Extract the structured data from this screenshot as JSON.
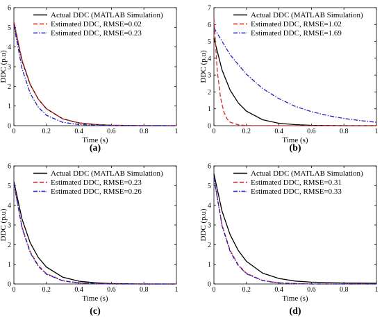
{
  "chart_data": [
    {
      "type": "line",
      "panel_label": "(a)",
      "xlabel": "Time (s)",
      "ylabel": "DDC (p.u)",
      "xlim": [
        0,
        1
      ],
      "ylim": [
        0,
        6
      ],
      "xticks": [
        "0",
        "0.2",
        "0.4",
        "0.6",
        "0.8",
        "1"
      ],
      "yticks": [
        "0",
        "1",
        "2",
        "3",
        "4",
        "5",
        "6"
      ],
      "legend_position": "top-right",
      "series": [
        {
          "name": "Actual DDC (MATLAB Simulation)",
          "color": "#000000",
          "style": "solid",
          "x": [
            0,
            0.05,
            0.1,
            0.15,
            0.2,
            0.3,
            0.4,
            0.5,
            0.6,
            0.8,
            1.0
          ],
          "y": [
            5.2,
            3.3,
            2.1,
            1.35,
            0.86,
            0.35,
            0.14,
            0.06,
            0.02,
            0.0,
            0.0
          ]
        },
        {
          "name": "Estimated DDC, RMSE=0.02",
          "color": "#d62728",
          "style": "dash",
          "x": [
            0,
            0.05,
            0.1,
            0.15,
            0.2,
            0.3,
            0.4,
            0.5,
            0.6,
            0.8,
            1.0
          ],
          "y": [
            5.3,
            3.35,
            2.12,
            1.35,
            0.86,
            0.35,
            0.14,
            0.06,
            0.02,
            0.0,
            0.0
          ]
        },
        {
          "name": "Estimated DDC, RMSE=0.23",
          "color": "#1f1fbf",
          "style": "dashdot",
          "x": [
            0,
            0.05,
            0.1,
            0.15,
            0.2,
            0.3,
            0.4,
            0.5,
            0.6,
            0.8,
            1.0
          ],
          "y": [
            5.1,
            2.9,
            1.65,
            0.94,
            0.53,
            0.17,
            0.06,
            0.02,
            0.0,
            0.0,
            0.0
          ]
        }
      ]
    },
    {
      "type": "line",
      "panel_label": "(b)",
      "xlabel": "Time (s)",
      "ylabel": "DDC (p.u)",
      "xlim": [
        0,
        1
      ],
      "ylim": [
        0,
        7
      ],
      "xticks": [
        "0",
        "0.2",
        "0.4",
        "0.6",
        "0.8",
        "1"
      ],
      "yticks": [
        "0",
        "1",
        "2",
        "3",
        "4",
        "5",
        "6",
        "7"
      ],
      "legend_position": "top-right",
      "series": [
        {
          "name": "Actual DDC (MATLAB Simulation)",
          "color": "#000000",
          "style": "solid",
          "x": [
            0,
            0.05,
            0.1,
            0.15,
            0.2,
            0.3,
            0.4,
            0.5,
            0.6,
            0.8,
            1.0
          ],
          "y": [
            5.2,
            3.3,
            2.1,
            1.35,
            0.86,
            0.35,
            0.14,
            0.06,
            0.02,
            0.0,
            0.0
          ]
        },
        {
          "name": "Estimated DDC, RMSE=1.02",
          "color": "#d62728",
          "style": "dash",
          "x": [
            0,
            0.02,
            0.04,
            0.06,
            0.08,
            0.1,
            0.15,
            0.2,
            0.4,
            0.6,
            1.0
          ],
          "y": [
            6.4,
            3.3,
            1.7,
            0.85,
            0.42,
            0.2,
            0.05,
            0.01,
            0.0,
            0.0,
            0.0
          ]
        },
        {
          "name": "Estimated DDC, RMSE=1.69",
          "color": "#1f1fbf",
          "style": "dashdot",
          "x": [
            0,
            0.1,
            0.2,
            0.3,
            0.4,
            0.5,
            0.6,
            0.7,
            0.8,
            0.9,
            1.0
          ],
          "y": [
            5.8,
            4.2,
            3.05,
            2.2,
            1.6,
            1.15,
            0.83,
            0.6,
            0.43,
            0.3,
            0.2
          ]
        }
      ]
    },
    {
      "type": "line",
      "panel_label": "(c)",
      "xlabel": "Time (s)",
      "ylabel": "DDC (p.u)",
      "xlim": [
        0,
        1
      ],
      "ylim": [
        0,
        6
      ],
      "xticks": [
        "0",
        "0.2",
        "0.4",
        "0.6",
        "0.8",
        "1"
      ],
      "yticks": [
        "0",
        "1",
        "2",
        "3",
        "4",
        "5",
        "6"
      ],
      "legend_position": "top-right",
      "series": [
        {
          "name": "Actual DDC (MATLAB Simulation)",
          "color": "#000000",
          "style": "solid",
          "x": [
            0,
            0.05,
            0.1,
            0.15,
            0.2,
            0.3,
            0.4,
            0.5,
            0.6,
            0.8,
            1.0
          ],
          "y": [
            5.2,
            3.3,
            2.1,
            1.35,
            0.86,
            0.35,
            0.14,
            0.06,
            0.02,
            0.0,
            0.0
          ]
        },
        {
          "name": "Estimated DDC, RMSE=0.23",
          "color": "#d62728",
          "style": "dash",
          "x": [
            0,
            0.05,
            0.1,
            0.15,
            0.2,
            0.3,
            0.4,
            0.5,
            0.6,
            0.8,
            1.0
          ],
          "y": [
            5.1,
            2.9,
            1.65,
            0.94,
            0.53,
            0.17,
            0.06,
            0.02,
            0.0,
            0.0,
            0.0
          ]
        },
        {
          "name": "Estimated DDC, RMSE=0.26",
          "color": "#1f1fbf",
          "style": "dashdot",
          "x": [
            0,
            0.05,
            0.1,
            0.15,
            0.2,
            0.3,
            0.4,
            0.5,
            0.6,
            0.8,
            1.0
          ],
          "y": [
            5.1,
            2.85,
            1.6,
            0.9,
            0.5,
            0.16,
            0.05,
            0.02,
            0.0,
            0.0,
            0.0
          ]
        }
      ]
    },
    {
      "type": "line",
      "panel_label": "(d)",
      "xlabel": "Time (s)",
      "ylabel": "DDC (p.u)",
      "xlim": [
        0,
        1
      ],
      "ylim": [
        0,
        6
      ],
      "xticks": [
        "0",
        "0.2",
        "0.4",
        "0.6",
        "0.8",
        "1"
      ],
      "yticks": [
        "0",
        "1",
        "2",
        "3",
        "4",
        "5",
        "6"
      ],
      "legend_position": "top-right",
      "series": [
        {
          "name": "Actual DDC (MATLAB Simulation)",
          "color": "#000000",
          "style": "solid",
          "x": [
            0,
            0.05,
            0.1,
            0.15,
            0.2,
            0.3,
            0.4,
            0.5,
            0.6,
            0.8,
            1.0
          ],
          "y": [
            5.6,
            3.7,
            2.5,
            1.7,
            1.15,
            0.55,
            0.28,
            0.15,
            0.09,
            0.05,
            0.04
          ]
        },
        {
          "name": "Estimated DDC, RMSE=0.31",
          "color": "#d62728",
          "style": "dash",
          "x": [
            0,
            0.05,
            0.1,
            0.15,
            0.2,
            0.3,
            0.4,
            0.5,
            0.6,
            0.8,
            1.0
          ],
          "y": [
            5.4,
            3.0,
            1.7,
            0.97,
            0.55,
            0.18,
            0.06,
            0.02,
            0.0,
            0.0,
            0.0
          ]
        },
        {
          "name": "Estimated DDC, RMSE=0.33",
          "color": "#1f1fbf",
          "style": "dashdot",
          "x": [
            0,
            0.05,
            0.1,
            0.15,
            0.2,
            0.3,
            0.4,
            0.5,
            0.6,
            0.8,
            1.0
          ],
          "y": [
            5.4,
            2.95,
            1.65,
            0.93,
            0.52,
            0.17,
            0.05,
            0.02,
            0.0,
            0.0,
            0.0
          ]
        }
      ]
    }
  ]
}
